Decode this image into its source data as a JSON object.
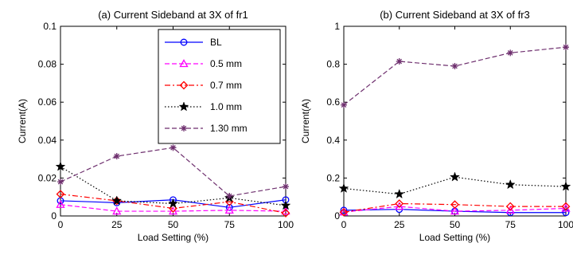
{
  "chart_data": [
    {
      "type": "line",
      "title": "(a) Current Sideband at 3X of fr1",
      "xlabel": "Load Setting (%)",
      "ylabel": "Current(A)",
      "x": [
        0,
        25,
        50,
        75,
        100
      ],
      "x_ticks": [
        "0",
        "25",
        "50",
        "75",
        "100"
      ],
      "y_ticks": [
        "0",
        "0.02",
        "0.04",
        "0.06",
        "0.08",
        "0.1"
      ],
      "xlim": [
        0,
        100
      ],
      "ylim": [
        0,
        0.1
      ],
      "grid": false,
      "legend": "top-right",
      "series": [
        {
          "name": "BL",
          "values": [
            0.008,
            0.007,
            0.0085,
            0.0045,
            0.0085
          ],
          "color": "#0000ff",
          "dash": "solid",
          "marker": "circle"
        },
        {
          "name": "0.5 mm",
          "values": [
            0.006,
            0.0025,
            0.0025,
            0.003,
            0.0025
          ],
          "color": "#ff00ff",
          "dash": "dashed",
          "marker": "triangle"
        },
        {
          "name": "0.7 mm",
          "values": [
            0.0115,
            0.008,
            0.004,
            0.0075,
            0.0015
          ],
          "color": "#ff0000",
          "dash": "dashdot",
          "marker": "diamond"
        },
        {
          "name": "1.0 mm",
          "values": [
            0.026,
            0.008,
            0.0065,
            0.0095,
            0.0055
          ],
          "color": "#000000",
          "dash": "dotted",
          "marker": "star"
        },
        {
          "name": "1.30 mm",
          "values": [
            0.018,
            0.0315,
            0.036,
            0.0105,
            0.0155
          ],
          "color": "#6e2f6e",
          "dash": "dashed",
          "marker": "asterisk"
        }
      ]
    },
    {
      "type": "line",
      "title": "(b) Current Sideband at 3X of fr3",
      "xlabel": "Load Setting (%)",
      "ylabel": "Current(A)",
      "x": [
        0,
        25,
        50,
        75,
        100
      ],
      "x_ticks": [
        "0",
        "25",
        "50",
        "75",
        "100"
      ],
      "y_ticks": [
        "0",
        "0.2",
        "0.4",
        "0.6",
        "0.8",
        "1"
      ],
      "xlim": [
        0,
        100
      ],
      "ylim": [
        0,
        1
      ],
      "grid": false,
      "series": [
        {
          "name": "BL",
          "values": [
            0.03,
            0.035,
            0.025,
            0.018,
            0.018
          ],
          "color": "#0000ff",
          "dash": "solid",
          "marker": "circle"
        },
        {
          "name": "0.5 mm",
          "values": [
            0.02,
            0.05,
            0.025,
            0.03,
            0.04
          ],
          "color": "#ff00ff",
          "dash": "dashed",
          "marker": "triangle"
        },
        {
          "name": "0.7 mm",
          "values": [
            0.02,
            0.065,
            0.06,
            0.05,
            0.05
          ],
          "color": "#ff0000",
          "dash": "dashdot",
          "marker": "diamond"
        },
        {
          "name": "1.0 mm",
          "values": [
            0.145,
            0.115,
            0.205,
            0.165,
            0.155
          ],
          "color": "#000000",
          "dash": "dotted",
          "marker": "star"
        },
        {
          "name": "1.30 mm",
          "values": [
            0.585,
            0.815,
            0.79,
            0.86,
            0.89
          ],
          "color": "#6e2f6e",
          "dash": "dashed",
          "marker": "asterisk"
        }
      ]
    }
  ]
}
